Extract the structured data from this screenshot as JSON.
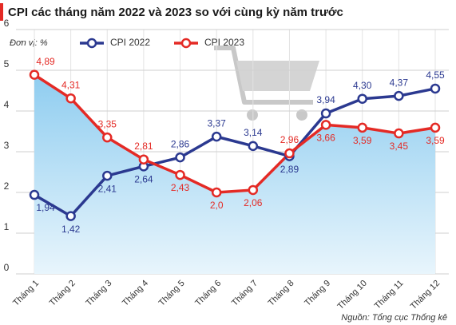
{
  "chart_data": {
    "type": "line",
    "title": "CPI các tháng năm 2022 và 2023 so với cùng kỳ năm trước",
    "unit_label": "Đơn vị: %",
    "source": "Nguồn: Tổng cục Thống kê",
    "categories": [
      "Tháng 1",
      "Tháng 2",
      "Tháng 3",
      "Tháng 4",
      "Tháng 5",
      "Tháng 6",
      "Tháng 7",
      "Tháng 8",
      "Tháng 9",
      "Tháng 10",
      "Tháng 11",
      "Tháng 12"
    ],
    "series": [
      {
        "name": "CPI 2022",
        "color": "#2b3990",
        "values": [
          1.94,
          1.42,
          2.41,
          2.64,
          2.86,
          3.37,
          3.14,
          2.89,
          3.94,
          4.3,
          4.37,
          4.55
        ],
        "value_labels": [
          "1,94",
          "1,42",
          "2,41",
          "2,64",
          "2,86",
          "3,37",
          "3,14",
          "2,89",
          "3,94",
          "4,30",
          "4,37",
          "4,55"
        ]
      },
      {
        "name": "CPI 2023",
        "color": "#e42a25",
        "values": [
          4.89,
          4.31,
          3.35,
          2.81,
          2.43,
          2.0,
          2.06,
          2.96,
          3.66,
          3.59,
          3.45,
          3.59
        ],
        "value_labels": [
          "4,89",
          "4,31",
          "3,35",
          "2,81",
          "2,43",
          "2,0",
          "2,06",
          "2,96",
          "3,66",
          "3,59",
          "3,45",
          "3,59"
        ]
      }
    ],
    "ylim": [
      0,
      6
    ],
    "yticks": [
      0,
      1,
      2,
      3,
      4,
      5,
      6
    ],
    "grid": true
  }
}
